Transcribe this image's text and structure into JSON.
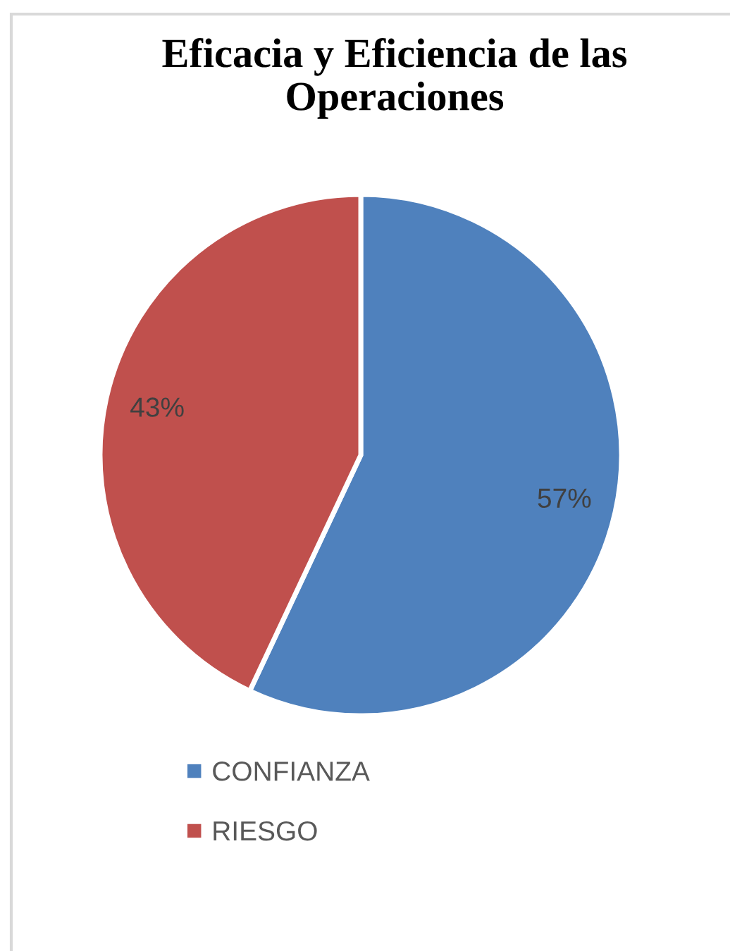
{
  "chart_data": {
    "type": "pie",
    "title": "Eficacia y Eficiencia de las Operaciones",
    "categories": [
      "CONFIANZA",
      "RIESGO"
    ],
    "values": [
      57,
      43
    ],
    "colors": [
      "#4f81bd",
      "#c0504d"
    ],
    "value_labels": [
      "57%",
      "43%"
    ],
    "legend": "bottom"
  }
}
